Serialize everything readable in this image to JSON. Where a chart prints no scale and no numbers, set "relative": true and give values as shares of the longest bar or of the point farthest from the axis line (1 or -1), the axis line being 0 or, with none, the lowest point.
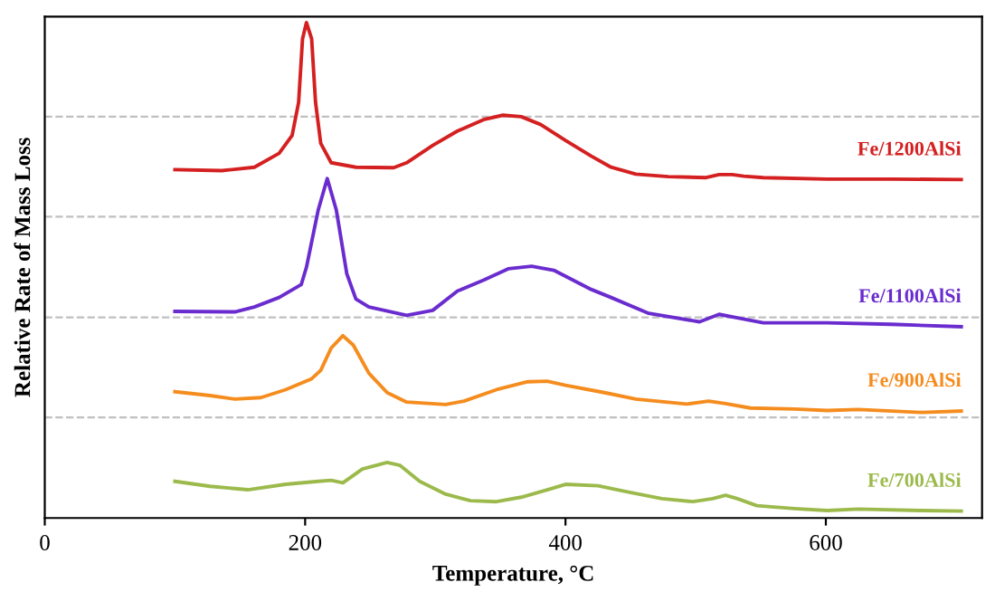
{
  "chart_data": {
    "type": "line",
    "relative": true,
    "xlabel": "Temperature, °C",
    "ylabel": "Relative Rate of Mass Loss",
    "xlim": [
      0,
      720
    ],
    "xticks": [
      0,
      200,
      400,
      600
    ],
    "grid": false,
    "legend": false,
    "marker": "none",
    "line_style": "solid",
    "ref_lines": [
      {
        "axis": "y",
        "value": 0.203,
        "color": "#c0c0c0",
        "line_style": "dashed"
      },
      {
        "axis": "y",
        "value": 0.405,
        "color": "#c0c0c0",
        "line_style": "dashed"
      },
      {
        "axis": "y",
        "value": 0.608,
        "color": "#c0c0c0",
        "line_style": "dashed"
      },
      {
        "axis": "y",
        "value": 0.81,
        "color": "#c0c0c0",
        "line_style": "dashed"
      }
    ],
    "series": [
      {
        "name": "Fe/1200AlSi",
        "color": "#d42020",
        "x": [
          100,
          136,
          161,
          180,
          190,
          195,
          198,
          201,
          205,
          208,
          212,
          220,
          239,
          268,
          278,
          298,
          317,
          337,
          352,
          366,
          381,
          400,
          420,
          435,
          454,
          479,
          508,
          518,
          528,
          537,
          552,
          601,
          650,
          704
        ],
        "values": [
          0.703,
          0.701,
          0.708,
          0.736,
          0.772,
          0.839,
          0.967,
          1.0,
          0.967,
          0.839,
          0.756,
          0.717,
          0.708,
          0.707,
          0.717,
          0.752,
          0.781,
          0.804,
          0.813,
          0.81,
          0.794,
          0.762,
          0.73,
          0.708,
          0.694,
          0.689,
          0.687,
          0.693,
          0.693,
          0.69,
          0.687,
          0.684,
          0.684,
          0.683
        ]
      },
      {
        "name": "Fe/1100AlSi",
        "color": "#6a2ccf",
        "x": [
          100,
          146,
          161,
          180,
          197,
          201,
          210,
          217,
          224,
          232,
          239,
          249,
          278,
          298,
          317,
          337,
          356,
          374,
          391,
          420,
          435,
          464,
          503,
          518,
          532,
          552,
          601,
          650,
          704
        ],
        "values": [
          0.417,
          0.416,
          0.426,
          0.445,
          0.471,
          0.506,
          0.621,
          0.685,
          0.621,
          0.493,
          0.442,
          0.426,
          0.409,
          0.419,
          0.458,
          0.48,
          0.503,
          0.508,
          0.5,
          0.461,
          0.445,
          0.413,
          0.396,
          0.411,
          0.404,
          0.394,
          0.394,
          0.391,
          0.386
        ]
      },
      {
        "name": "Fe/900AlSi",
        "color": "#f58c1e",
        "x": [
          100,
          127,
          146,
          166,
          185,
          205,
          212,
          220,
          229,
          237,
          249,
          263,
          278,
          308,
          322,
          347,
          371,
          386,
          400,
          430,
          454,
          493,
          510,
          523,
          542,
          576,
          601,
          625,
          674,
          704
        ],
        "values": [
          0.255,
          0.247,
          0.24,
          0.243,
          0.259,
          0.281,
          0.298,
          0.343,
          0.368,
          0.349,
          0.292,
          0.253,
          0.234,
          0.229,
          0.236,
          0.259,
          0.275,
          0.276,
          0.268,
          0.253,
          0.24,
          0.23,
          0.236,
          0.231,
          0.222,
          0.22,
          0.217,
          0.219,
          0.213,
          0.216
        ]
      },
      {
        "name": "Fe/700AlSi",
        "color": "#9cba4c",
        "x": [
          100,
          127,
          156,
          185,
          210,
          220,
          229,
          244,
          263,
          273,
          288,
          308,
          327,
          347,
          366,
          386,
          400,
          425,
          445,
          474,
          498,
          513,
          523,
          532,
          547,
          576,
          601,
          625,
          674,
          704
        ],
        "values": [
          0.074,
          0.064,
          0.057,
          0.068,
          0.074,
          0.076,
          0.071,
          0.099,
          0.112,
          0.106,
          0.074,
          0.048,
          0.035,
          0.033,
          0.042,
          0.057,
          0.068,
          0.065,
          0.054,
          0.039,
          0.033,
          0.039,
          0.046,
          0.039,
          0.025,
          0.019,
          0.015,
          0.018,
          0.015,
          0.014
        ]
      }
    ]
  }
}
